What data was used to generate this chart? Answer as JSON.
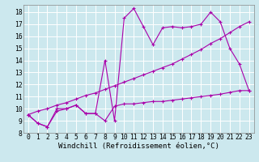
{
  "background_color": "#cce8ee",
  "grid_color": "#ffffff",
  "line_color": "#aa00aa",
  "xlabel": "Windchill (Refroidissement éolien,°C)",
  "xlabel_fontsize": 6.5,
  "tick_fontsize": 5.8,
  "xlim": [
    -0.5,
    23.5
  ],
  "ylim": [
    8,
    18.6
  ],
  "yticks": [
    8,
    9,
    10,
    11,
    12,
    13,
    14,
    15,
    16,
    17,
    18
  ],
  "xticks": [
    0,
    1,
    2,
    3,
    4,
    5,
    6,
    7,
    8,
    9,
    10,
    11,
    12,
    13,
    14,
    15,
    16,
    17,
    18,
    19,
    20,
    21,
    22,
    23
  ],
  "series_bottom_x": [
    0,
    1,
    2,
    3,
    4,
    5,
    6,
    7,
    8,
    9,
    10,
    11,
    12,
    13,
    14,
    15,
    16,
    17,
    18,
    19,
    20,
    21,
    22,
    23
  ],
  "series_bottom_y": [
    9.5,
    8.8,
    8.5,
    9.8,
    10.0,
    10.3,
    9.6,
    9.6,
    9.0,
    10.2,
    10.4,
    10.4,
    10.5,
    10.6,
    10.6,
    10.7,
    10.8,
    10.9,
    11.0,
    11.1,
    11.2,
    11.35,
    11.5,
    11.5
  ],
  "series_zigzag_x": [
    0,
    1,
    2,
    3,
    4,
    5,
    6,
    7,
    8,
    9,
    10,
    11,
    12,
    13,
    14,
    15,
    16,
    17,
    18,
    19,
    20,
    21,
    22,
    23
  ],
  "series_zigzag_y": [
    9.5,
    8.8,
    8.5,
    10.0,
    10.0,
    10.3,
    9.6,
    9.6,
    14.0,
    9.0,
    17.5,
    18.3,
    16.8,
    15.3,
    16.7,
    16.8,
    16.7,
    16.8,
    17.0,
    18.0,
    17.2,
    15.0,
    13.7,
    11.5
  ],
  "series_diag_x": [
    0,
    1,
    2,
    3,
    4,
    5,
    6,
    7,
    8,
    9,
    10,
    11,
    12,
    13,
    14,
    15,
    16,
    17,
    18,
    19,
    20,
    21,
    22,
    23
  ],
  "series_diag_y": [
    9.5,
    9.8,
    10.0,
    10.3,
    10.5,
    10.8,
    11.1,
    11.3,
    11.6,
    11.9,
    12.2,
    12.5,
    12.8,
    13.1,
    13.4,
    13.7,
    14.1,
    14.5,
    14.9,
    15.4,
    15.8,
    16.3,
    16.8,
    17.2
  ]
}
